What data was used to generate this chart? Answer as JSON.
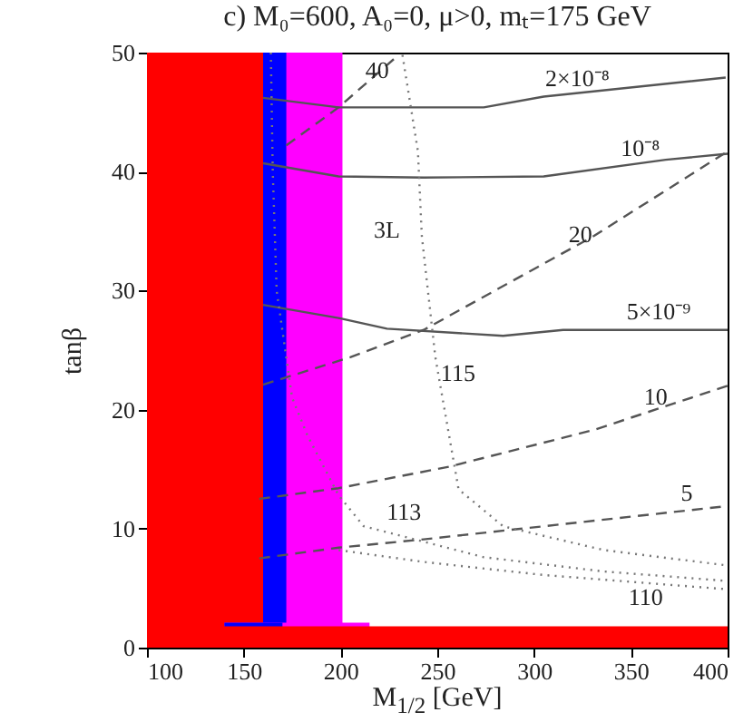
{
  "chart_data": {
    "type": "line",
    "title": "c) M₀=600, A₀=0, μ>0, mₜ=175 GeV",
    "xlabel": "M$_{1/2}$ [GeV]",
    "ylabel": "tanβ",
    "xlim": [
      100,
      400
    ],
    "xticks": [
      100,
      150,
      200,
      250,
      300,
      350,
      400
    ],
    "ylim": [
      0,
      50
    ],
    "yticks": [
      0,
      10,
      20,
      30,
      40,
      50
    ],
    "grid": false,
    "marker": "none",
    "series": [
      {
        "type": "area",
        "color": "#ff00ff",
        "x": [
          150,
          201
        ],
        "values": [
          50,
          50
        ]
      },
      {
        "type": "area",
        "color": "#0000ff",
        "x": [
          150,
          172
        ],
        "values": [
          50,
          50
        ]
      },
      {
        "type": "area",
        "color": "#ff0000",
        "x": [
          100,
          160
        ],
        "values": [
          50,
          50
        ]
      },
      {
        "type": "area",
        "color": "#ff00ff",
        "x": [
          140,
          215
        ],
        "values": [
          2.1,
          2.1
        ]
      },
      {
        "type": "area",
        "color": "#0000ff",
        "x": [
          140,
          170
        ],
        "values": [
          2.1,
          2.1
        ]
      },
      {
        "type": "area",
        "color": "#ff0000",
        "x": [
          100,
          400
        ],
        "values": [
          1.8,
          1.8
        ]
      },
      {
        "line_style": "solid",
        "color": "#555555",
        "x": [
          160,
          199,
          274,
          305,
          399
        ],
        "values": [
          46.2,
          45.4,
          45.4,
          46.3,
          47.9
        ]
      },
      {
        "line_style": "solid",
        "color": "#555555",
        "x": [
          160,
          199,
          243,
          305,
          368,
          400
        ],
        "values": [
          40.7,
          39.6,
          39.5,
          39.6,
          41.0,
          41.5
        ]
      },
      {
        "line_style": "solid",
        "color": "#555555",
        "x": [
          160,
          199,
          224,
          284,
          315,
          400
        ],
        "values": [
          28.8,
          27.7,
          26.8,
          26.2,
          26.7,
          26.7
        ]
      },
      {
        "line_style": "dashed",
        "color": "#555555",
        "x": [
          172,
          199,
          230
        ],
        "values": [
          42.2,
          45.4,
          49.8
        ]
      },
      {
        "line_style": "dashed",
        "color": "#555555",
        "x": [
          160,
          205,
          243,
          331,
          400
        ],
        "values": [
          22.1,
          24.4,
          26.7,
          34.6,
          41.7
        ]
      },
      {
        "line_style": "dashed",
        "color": "#555555",
        "x": [
          158,
          199,
          256,
          331,
          400
        ],
        "values": [
          12.5,
          13.4,
          15.2,
          18.3,
          22
        ]
      },
      {
        "line_style": "dashed",
        "color": "#555555",
        "x": [
          158,
          199,
          243,
          305,
          400
        ],
        "values": [
          7.5,
          8.4,
          9.1,
          10.2,
          11.9
        ]
      },
      {
        "line_style": "dotted",
        "color": "#777777",
        "x": [
          232,
          240,
          242,
          249,
          261,
          284,
          336,
          400
        ],
        "values": [
          49.8,
          41.7,
          34.6,
          24.4,
          13.3,
          10.2,
          8.2,
          6.9
        ]
      },
      {
        "line_style": "dotted",
        "color": "#777777",
        "x": [
          164,
          165,
          167,
          175,
          183,
          199,
          212,
          274,
          336,
          400
        ],
        "values": [
          50,
          40,
          30,
          21,
          17.8,
          12.8,
          10.2,
          7.6,
          6.4,
          5.6
        ]
      },
      {
        "line_style": "dotted",
        "color": "#777777",
        "x": [
          199,
          243,
          305,
          400
        ],
        "values": [
          8.2,
          7.2,
          6.1,
          4.9
        ]
      }
    ],
    "annotations": [
      {
        "text": "2×10⁻⁸",
        "x": 303,
        "y": 46.24
      },
      {
        "text": "10⁻⁸",
        "x": 342,
        "y": 40.42
      },
      {
        "text": "5×10⁻⁹",
        "x": 345,
        "y": 26.7
      },
      {
        "text": "40",
        "x": 210,
        "y": 46.96
      },
      {
        "text": "20",
        "x": 315,
        "y": 33.16
      },
      {
        "text": "10",
        "x": 354,
        "y": 19.53
      },
      {
        "text": "5",
        "x": 373,
        "y": 11.42
      },
      {
        "text": "115",
        "x": 249,
        "y": 24.4
      },
      {
        "text": "113",
        "x": 221,
        "y": 9.82
      },
      {
        "text": "110",
        "x": 346,
        "y": 5.58
      },
      "3L"
    ]
  }
}
